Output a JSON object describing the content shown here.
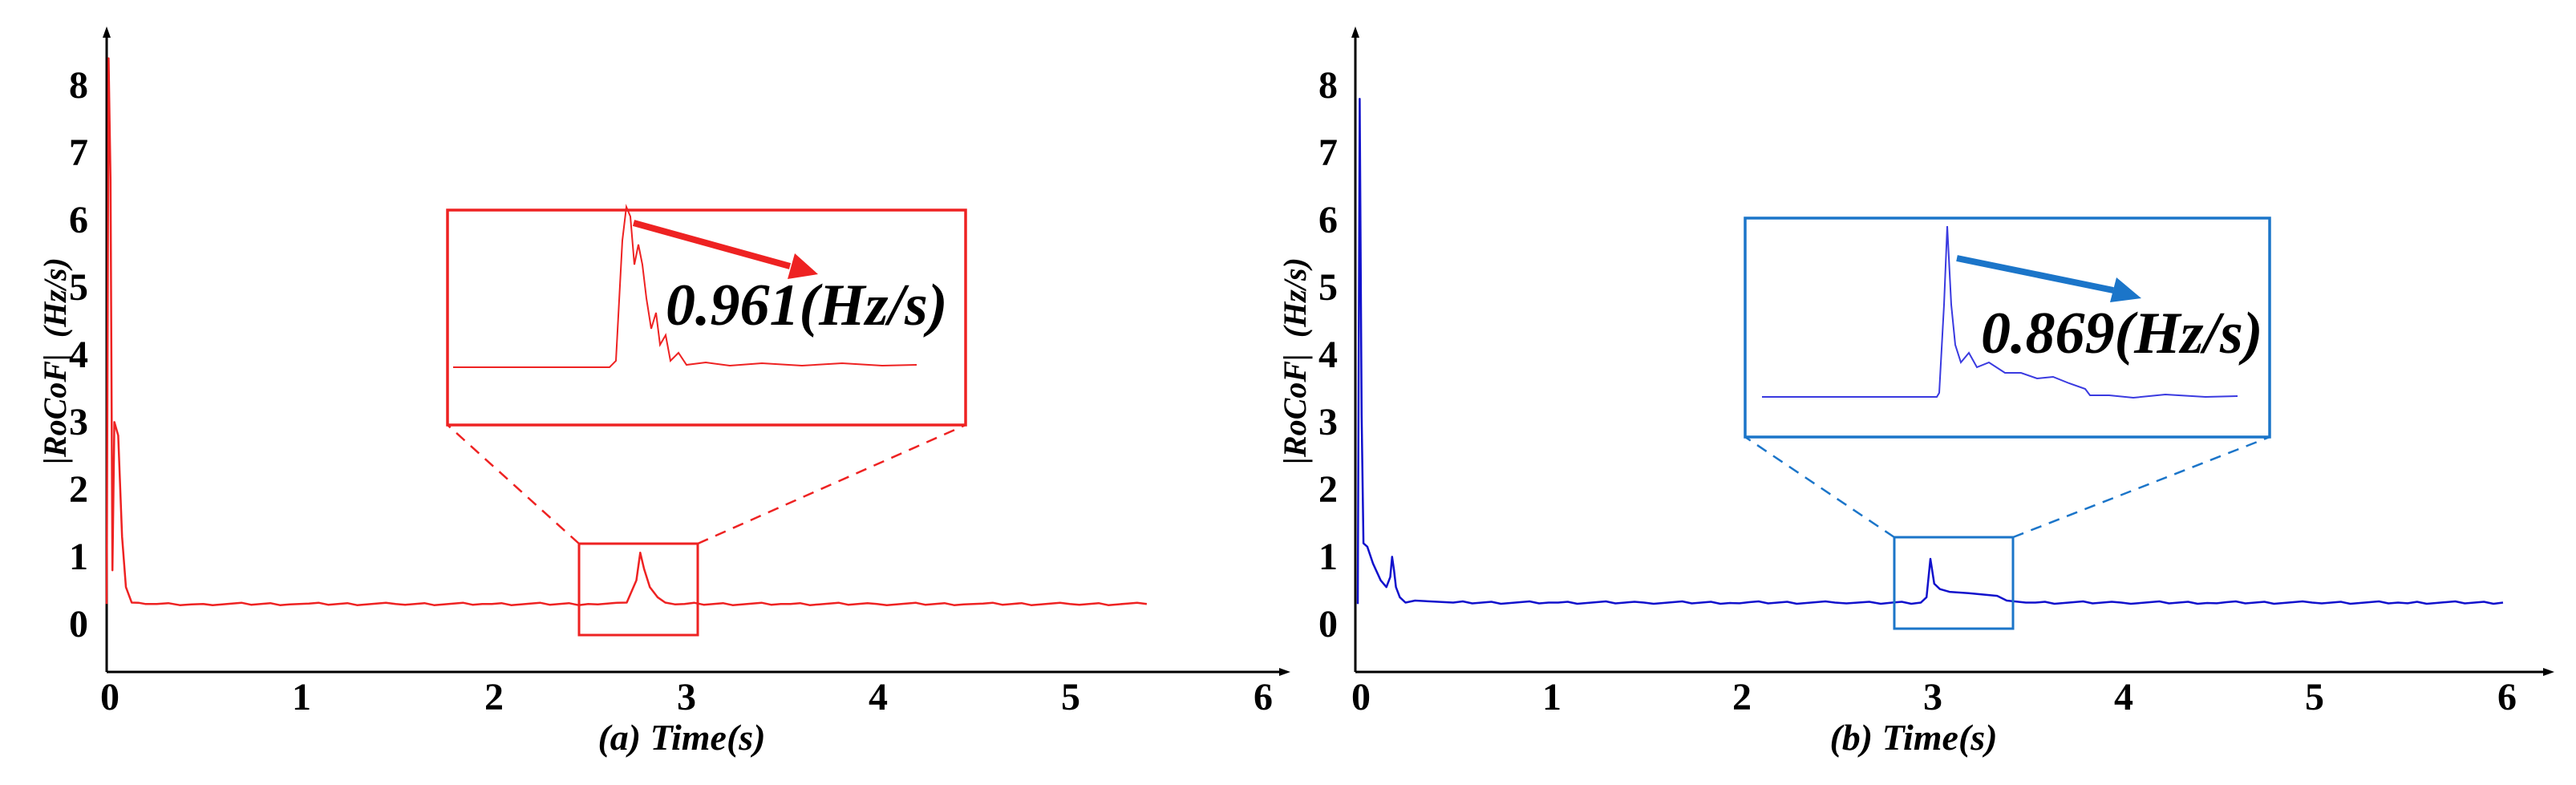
{
  "chart_data": [
    {
      "type": "line",
      "panel": "a",
      "xlabel": "(a) Time(s)",
      "ylabel": "|RoCoF|  (Hz/s)",
      "xlim": [
        0,
        6
      ],
      "ylim": [
        0,
        8.5
      ],
      "x_ticks": [
        "0",
        "1",
        "2",
        "3",
        "4",
        "5",
        "6"
      ],
      "y_ticks": [
        "0",
        "1",
        "2",
        "3",
        "4",
        "5",
        "6",
        "7",
        "8"
      ],
      "color": "#ee2222",
      "baseline": 0.2,
      "series": [
        {
          "x": [
            0.0,
            0.01,
            0.02,
            0.03,
            0.04,
            0.06,
            0.08,
            0.1,
            0.13,
            0.2,
            0.5,
            1.0,
            1.5,
            2.0,
            2.5,
            2.7,
            2.75,
            2.77,
            2.79,
            2.82,
            2.86,
            2.9,
            3.0,
            3.5,
            4.0,
            4.5,
            5.0,
            5.4
          ],
          "y": [
            0.2,
            8.3,
            6.5,
            0.7,
            2.9,
            2.7,
            1.2,
            0.45,
            0.22,
            0.2,
            0.2,
            0.2,
            0.2,
            0.2,
            0.2,
            0.22,
            0.55,
            0.961,
            0.72,
            0.45,
            0.3,
            0.22,
            0.2,
            0.2,
            0.2,
            0.2,
            0.2,
            0.2
          ]
        }
      ],
      "zoom_region": {
        "x": [
          2.45,
          3.05
        ],
        "y": [
          -0.2,
          1.15
        ]
      },
      "annotation": "0.961(Hz/s)"
    },
    {
      "type": "line",
      "panel": "b",
      "xlabel": "(b) Time(s)",
      "ylabel": "|RoCoF|  (Hz/s)",
      "xlim": [
        0,
        6
      ],
      "ylim": [
        0,
        8.5
      ],
      "x_ticks": [
        "0",
        "1",
        "2",
        "3",
        "4",
        "5",
        "6"
      ],
      "y_ticks": [
        "0",
        "1",
        "2",
        "3",
        "4",
        "5",
        "6",
        "7",
        "8"
      ],
      "color": "#1111cc",
      "baseline": 0.22,
      "series": [
        {
          "x": [
            0.0,
            0.01,
            0.02,
            0.03,
            0.05,
            0.08,
            0.12,
            0.15,
            0.17,
            0.18,
            0.19,
            0.2,
            0.22,
            0.25,
            0.3,
            0.5,
            1.0,
            1.5,
            2.0,
            2.5,
            2.8,
            2.95,
            2.98,
            3.0,
            3.02,
            3.05,
            3.1,
            3.2,
            3.35,
            3.4,
            3.5,
            4.0,
            4.5,
            5.0,
            5.5,
            6.0
          ],
          "y": [
            0.2,
            7.7,
            3.0,
            1.1,
            1.05,
            0.8,
            0.55,
            0.45,
            0.6,
            0.9,
            0.7,
            0.45,
            0.3,
            0.22,
            0.25,
            0.22,
            0.22,
            0.22,
            0.21,
            0.22,
            0.22,
            0.22,
            0.3,
            0.869,
            0.5,
            0.42,
            0.38,
            0.36,
            0.32,
            0.25,
            0.22,
            0.22,
            0.21,
            0.22,
            0.21,
            0.22
          ]
        }
      ],
      "zoom_region": {
        "x": [
          2.8,
          3.4
        ],
        "y": [
          -0.15,
          1.1
        ]
      },
      "annotation": "0.869(Hz/s)"
    }
  ]
}
